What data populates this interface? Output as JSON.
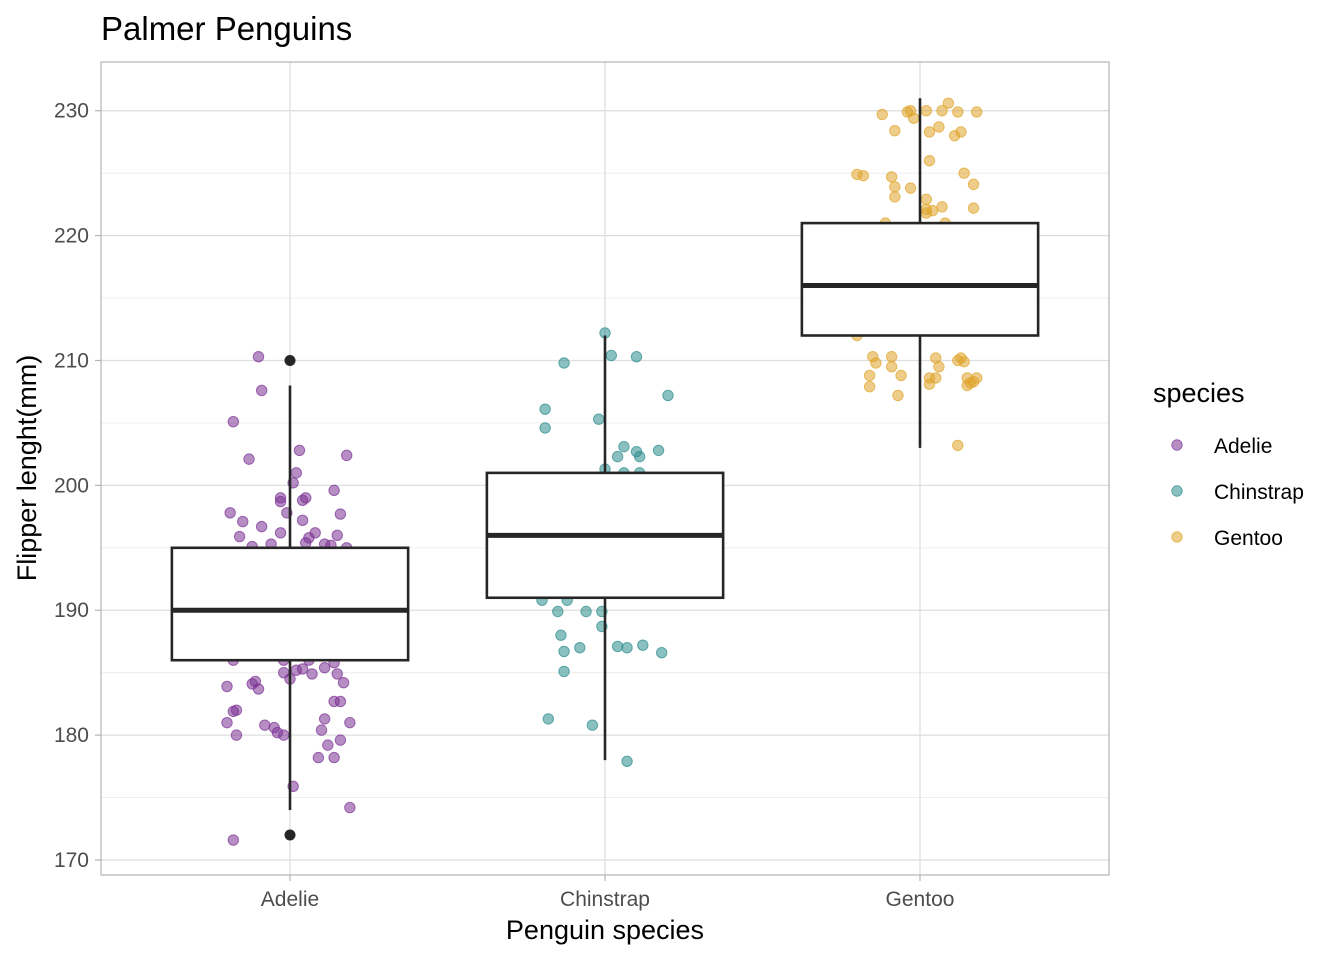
{
  "chart_data": {
    "type": "box",
    "title": "Palmer Penguins",
    "xlabel": "Penguin species",
    "ylabel": "Flipper lenght(mm)",
    "categories": [
      "Adelie",
      "Chinstrap",
      "Gentoo"
    ],
    "ylim": [
      168.8,
      233.9
    ],
    "y_ticks": [
      170,
      180,
      190,
      200,
      210,
      220,
      230
    ],
    "grid": true,
    "legend": {
      "title": "species",
      "position": "right",
      "entries": [
        "Adelie",
        "Chinstrap",
        "Gentoo"
      ]
    },
    "colors": {
      "Adelie": "#7b3294",
      "Chinstrap": "#2c8c8c",
      "Gentoo": "#e0a429",
      "box_stroke": "#262626",
      "grid": "#dedede",
      "panel_border": "#b3b3b3"
    },
    "boxes": [
      {
        "category": "Adelie",
        "q1": 186,
        "median": 190,
        "q3": 195,
        "whisker_low": 174,
        "whisker_high": 208,
        "outliers": [
          210,
          172
        ]
      },
      {
        "category": "Chinstrap",
        "q1": 191,
        "median": 196,
        "q3": 201,
        "whisker_low": 178,
        "whisker_high": 212,
        "outliers": []
      },
      {
        "category": "Gentoo",
        "q1": 212,
        "median": 216,
        "q3": 221,
        "whisker_low": 203,
        "whisker_high": 231,
        "outliers": []
      }
    ],
    "points": {
      "Adelie": [
        [
          -0.1,
          210.3
        ],
        [
          -0.09,
          207.6
        ],
        [
          -0.18,
          205.1
        ],
        [
          0.03,
          202.8
        ],
        [
          0.18,
          202.4
        ],
        [
          -0.13,
          202.1
        ],
        [
          0.02,
          201.0
        ],
        [
          0.01,
          200.2
        ],
        [
          0.14,
          199.6
        ],
        [
          -0.03,
          199.0
        ],
        [
          0.05,
          199.0
        ],
        [
          0.04,
          198.8
        ],
        [
          -0.03,
          198.7
        ],
        [
          -0.01,
          197.8
        ],
        [
          0.16,
          197.7
        ],
        [
          -0.19,
          197.8
        ],
        [
          0.04,
          197.2
        ],
        [
          -0.15,
          197.1
        ],
        [
          -0.09,
          196.7
        ],
        [
          0.08,
          196.2
        ],
        [
          -0.03,
          196.2
        ],
        [
          0.15,
          196.0
        ],
        [
          0.06,
          195.8
        ],
        [
          -0.16,
          195.9
        ],
        [
          0.05,
          195.4
        ],
        [
          0.11,
          195.3
        ],
        [
          -0.06,
          195.3
        ],
        [
          0.13,
          195.2
        ],
        [
          -0.12,
          195.1
        ],
        [
          0.18,
          195.0
        ],
        [
          0.14,
          188.2
        ],
        [
          -0.14,
          188.8
        ],
        [
          0.06,
          187.0
        ],
        [
          -0.18,
          186.0
        ],
        [
          0.06,
          186.0
        ],
        [
          -0.02,
          186.0
        ],
        [
          0.14,
          185.8
        ],
        [
          0.11,
          185.4
        ],
        [
          0.04,
          185.3
        ],
        [
          0.02,
          185.2
        ],
        [
          -0.02,
          185.0
        ],
        [
          0.07,
          184.9
        ],
        [
          0.15,
          184.9
        ],
        [
          0.17,
          184.2
        ],
        [
          0.0,
          184.5
        ],
        [
          -0.11,
          184.3
        ],
        [
          -0.12,
          184.1
        ],
        [
          -0.1,
          183.7
        ],
        [
          -0.2,
          183.9
        ],
        [
          0.16,
          182.7
        ],
        [
          0.14,
          182.7
        ],
        [
          -0.17,
          182.0
        ],
        [
          -0.18,
          181.9
        ],
        [
          0.11,
          181.3
        ],
        [
          0.19,
          181.0
        ],
        [
          -0.08,
          180.8
        ],
        [
          -0.2,
          181.0
        ],
        [
          -0.05,
          180.6
        ],
        [
          -0.04,
          180.2
        ],
        [
          -0.02,
          180.0
        ],
        [
          -0.17,
          180.0
        ],
        [
          0.16,
          179.6
        ],
        [
          0.12,
          179.2
        ],
        [
          0.1,
          180.4
        ],
        [
          0.09,
          178.2
        ],
        [
          0.14,
          178.2
        ],
        [
          0.01,
          175.9
        ],
        [
          0.19,
          174.2
        ],
        [
          -0.18,
          171.6
        ]
      ],
      "Chinstrap": [
        [
          0.0,
          212.2
        ],
        [
          0.02,
          210.4
        ],
        [
          0.1,
          210.3
        ],
        [
          -0.13,
          209.8
        ],
        [
          0.2,
          207.2
        ],
        [
          -0.19,
          206.1
        ],
        [
          -0.02,
          205.3
        ],
        [
          -0.19,
          204.6
        ],
        [
          0.06,
          203.1
        ],
        [
          0.17,
          202.8
        ],
        [
          0.1,
          202.7
        ],
        [
          0.11,
          202.3
        ],
        [
          0.04,
          202.3
        ],
        [
          0.0,
          201.3
        ],
        [
          0.06,
          201.0
        ],
        [
          0.11,
          201.0
        ],
        [
          -0.12,
          190.8
        ],
        [
          -0.2,
          190.8
        ],
        [
          -0.15,
          189.9
        ],
        [
          -0.06,
          189.9
        ],
        [
          -0.01,
          189.9
        ],
        [
          -0.01,
          188.7
        ],
        [
          -0.14,
          188.0
        ],
        [
          0.12,
          187.2
        ],
        [
          0.04,
          187.1
        ],
        [
          0.07,
          187.0
        ],
        [
          -0.08,
          187.0
        ],
        [
          -0.13,
          186.7
        ],
        [
          0.18,
          186.6
        ],
        [
          -0.13,
          185.1
        ],
        [
          -0.18,
          181.3
        ],
        [
          -0.04,
          180.8
        ],
        [
          0.07,
          177.9
        ]
      ],
      "Gentoo": [
        [
          0.09,
          230.6
        ],
        [
          -0.03,
          230.0
        ],
        [
          -0.04,
          229.9
        ],
        [
          0.02,
          230.0
        ],
        [
          0.07,
          230.0
        ],
        [
          0.12,
          229.9
        ],
        [
          0.18,
          229.9
        ],
        [
          -0.12,
          229.7
        ],
        [
          -0.02,
          229.4
        ],
        [
          0.06,
          228.7
        ],
        [
          -0.08,
          228.4
        ],
        [
          0.13,
          228.3
        ],
        [
          0.03,
          228.3
        ],
        [
          0.11,
          228.0
        ],
        [
          0.03,
          226.0
        ],
        [
          0.14,
          225.0
        ],
        [
          -0.2,
          224.9
        ],
        [
          -0.18,
          224.8
        ],
        [
          -0.09,
          224.7
        ],
        [
          0.17,
          224.1
        ],
        [
          -0.08,
          223.9
        ],
        [
          -0.03,
          223.8
        ],
        [
          -0.08,
          223.1
        ],
        [
          0.02,
          222.9
        ],
        [
          0.07,
          222.3
        ],
        [
          0.02,
          222.1
        ],
        [
          0.04,
          222.0
        ],
        [
          0.17,
          222.2
        ],
        [
          0.02,
          221.8
        ],
        [
          0.08,
          221.0
        ],
        [
          -0.11,
          221.0
        ],
        [
          -0.2,
          212.0
        ],
        [
          -0.15,
          210.3
        ],
        [
          -0.09,
          210.3
        ],
        [
          0.05,
          210.2
        ],
        [
          0.13,
          210.2
        ],
        [
          0.12,
          210.0
        ],
        [
          -0.14,
          209.8
        ],
        [
          -0.09,
          209.5
        ],
        [
          0.06,
          209.5
        ],
        [
          0.14,
          209.9
        ],
        [
          0.03,
          208.6
        ],
        [
          0.05,
          208.6
        ],
        [
          0.15,
          208.6
        ],
        [
          0.18,
          208.6
        ],
        [
          -0.16,
          208.8
        ],
        [
          -0.06,
          208.8
        ],
        [
          0.03,
          208.1
        ],
        [
          0.16,
          208.2
        ],
        [
          0.17,
          208.3
        ],
        [
          0.15,
          208.0
        ],
        [
          -0.16,
          207.9
        ],
        [
          -0.07,
          207.2
        ],
        [
          0.12,
          203.2
        ]
      ]
    }
  }
}
